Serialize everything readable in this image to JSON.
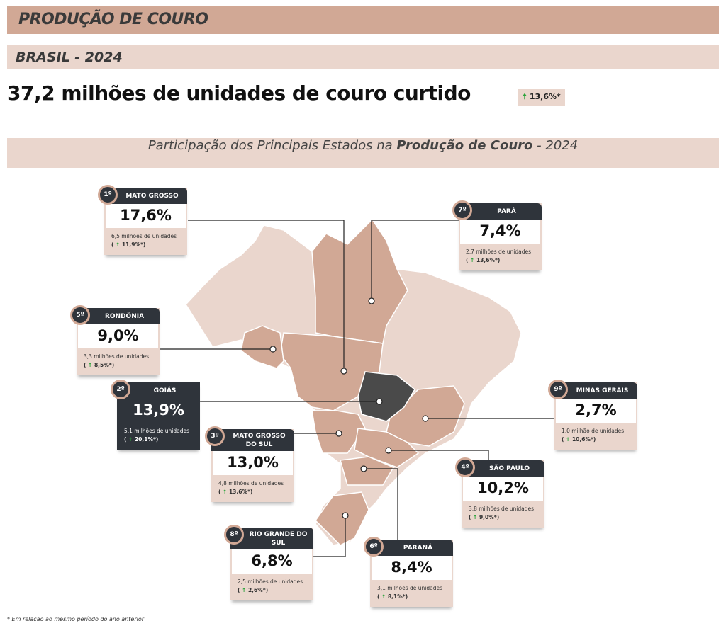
{
  "header": {
    "title": "PRODUÇÃO DE COURO",
    "subtitle": "BRASIL - 2024"
  },
  "headline": {
    "text": "37,2 milhões de unidades de couro curtido",
    "change": "13,6%*",
    "change_icon": "arrow-up-icon"
  },
  "section": {
    "title_prefix": "Participação dos Principais Estados na ",
    "title_bold": "Produção de Couro",
    "title_suffix": " - 2024"
  },
  "colors": {
    "primary": "#d1a895",
    "light": "#ead6cd",
    "dark": "#2f343b",
    "goias_fill": "#4a4a4a",
    "up": "#2aa33a"
  },
  "states": [
    {
      "rank": "1º",
      "name": "MATO GROSSO",
      "share": "17,6%",
      "units": "6,5 milhões de unidades",
      "change": "11,9%*"
    },
    {
      "rank": "7º",
      "name": "PARÁ",
      "share": "7,4%",
      "units": "2,7 milhões de unidades",
      "change": "13,6%*"
    },
    {
      "rank": "5º",
      "name": "RONDÔNIA",
      "share": "9,0%",
      "units": "3,3 milhões de unidades",
      "change": "8,5%*"
    },
    {
      "rank": "2º",
      "name": "GOIÁS",
      "share": "13,9%",
      "units": "5,1 milhões de unidades",
      "change": "20,1%*"
    },
    {
      "rank": "3º",
      "name": "MATO GROSSO DO SUL",
      "share": "13,0%",
      "units": "4,8 milhões de unidades",
      "change": "13,6%*"
    },
    {
      "rank": "9º",
      "name": "MINAS GERAIS",
      "share": "2,7%",
      "units": "1,0 milhão de unidades",
      "change": "10,6%*"
    },
    {
      "rank": "4º",
      "name": "SÃO PAULO",
      "share": "10,2%",
      "units": "3,8 milhões de unidades",
      "change": "9,0%*"
    },
    {
      "rank": "6º",
      "name": "PARANÁ",
      "share": "8,4%",
      "units": "3,1 milhões de unidades",
      "change": "8,1%*"
    },
    {
      "rank": "8º",
      "name": "RIO GRANDE DO SUL",
      "share": "6,8%",
      "units": "2,5 milhões de unidades",
      "change": "2,6%*"
    }
  ],
  "footnote": "* Em relação ao mesmo período do ano anterior"
}
